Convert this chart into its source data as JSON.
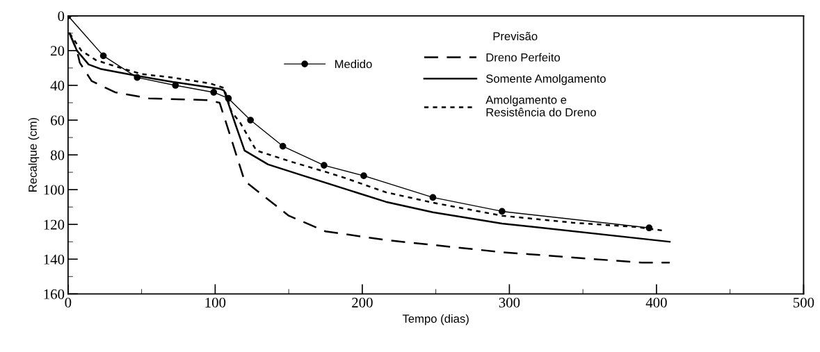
{
  "chart_data": {
    "type": "line",
    "xlabel": "Tempo (dias)",
    "ylabel": "Recalque (cm)",
    "xlim": [
      0,
      500
    ],
    "xticks": [
      0,
      100,
      200,
      300,
      400,
      500
    ],
    "ylim": [
      160,
      0
    ],
    "yticks": [
      0,
      20,
      40,
      60,
      80,
      100,
      120,
      140,
      160
    ],
    "grid": false,
    "legend": "top",
    "legend_title": "Previsão",
    "series": [
      {
        "name": "Medido",
        "color": "#000000",
        "marker": "circle",
        "line_style": "solid",
        "x": [
          0,
          24,
          47,
          73,
          99,
          109,
          124,
          146,
          174,
          201,
          248,
          295,
          395
        ],
        "values": [
          0,
          23,
          35.5,
          40,
          44,
          47.5,
          60,
          75,
          86,
          92,
          104.5,
          112.5,
          122
        ]
      },
      {
        "name": "Dreno Perfeito",
        "color": "#000000",
        "marker": "none",
        "line_style": "dashed",
        "x": [
          1,
          6,
          8,
          16,
          32,
          55,
          95,
          103,
          108,
          120,
          150,
          175,
          216,
          295,
          390,
          409
        ],
        "values": [
          10,
          20,
          27,
          37.5,
          44,
          47.5,
          48.5,
          50,
          63,
          95,
          115,
          124,
          129,
          136,
          142,
          142
        ]
      },
      {
        "name": "Somente Amolgamento",
        "color": "#000000",
        "marker": "none",
        "line_style": "solid",
        "x": [
          1,
          6,
          14,
          22,
          47,
          71,
          103,
          106,
          114,
          120,
          136,
          160,
          216,
          248,
          295,
          409
        ],
        "values": [
          10,
          20,
          28,
          30.5,
          34.5,
          38,
          42,
          43,
          63,
          77.5,
          85.5,
          92,
          107,
          113,
          119.5,
          130
        ]
      },
      {
        "name": "Amolgamento e\nResistência do Dreno",
        "color": "#000000",
        "marker": "none",
        "line_style": "dotted",
        "x": [
          1,
          9,
          19,
          32,
          50,
          71,
          97,
          106,
          111,
          117,
          128,
          152,
          176,
          189,
          216,
          248,
          295,
          343,
          386,
          404
        ],
        "values": [
          10,
          20,
          25.5,
          29,
          33.5,
          35.5,
          39,
          41.5,
          55,
          61.5,
          77.5,
          84,
          90,
          93.5,
          101.5,
          107.5,
          115,
          119,
          121.5,
          123.5
        ]
      }
    ]
  }
}
